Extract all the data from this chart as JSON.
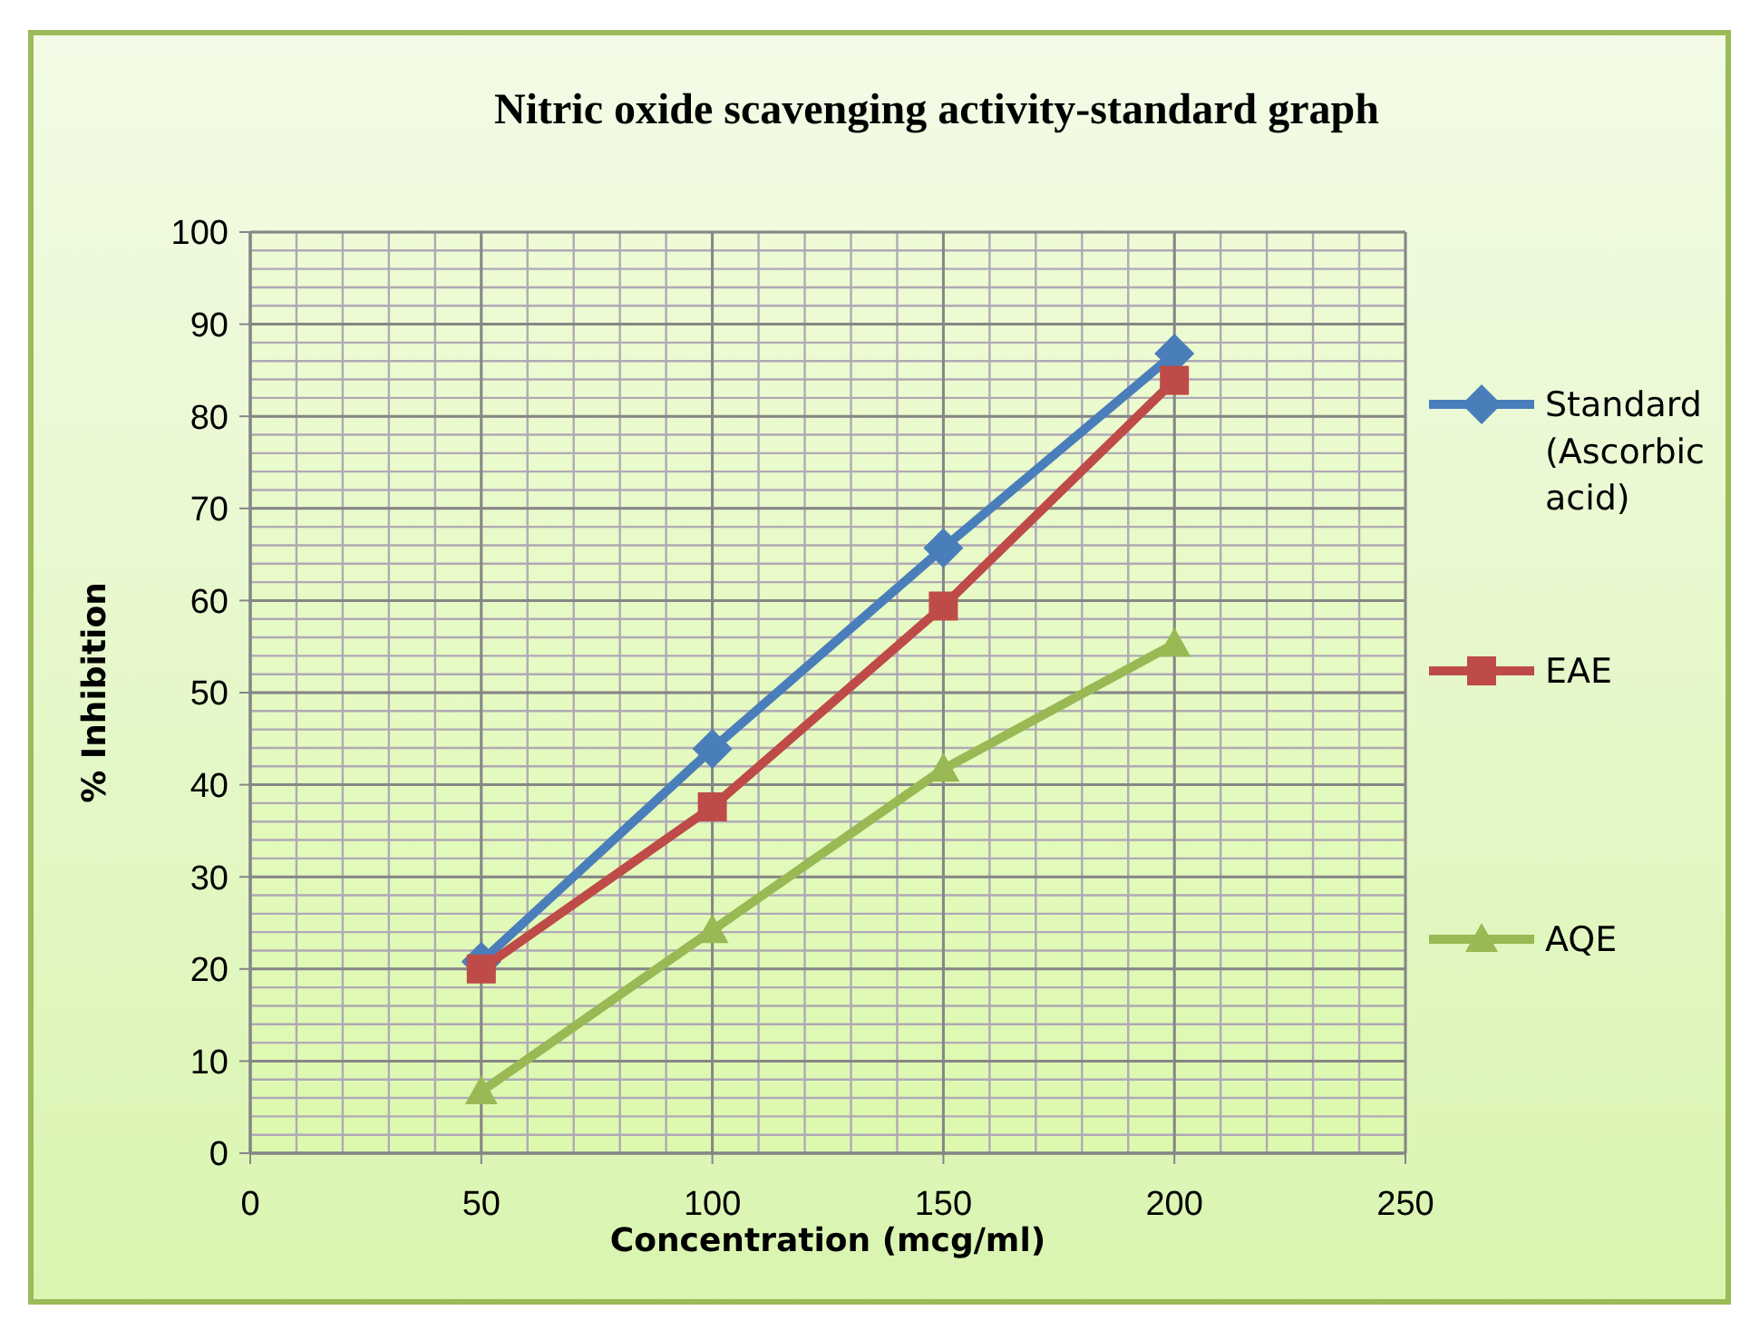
{
  "chart_data": {
    "type": "line",
    "title": "Nitric oxide scavenging activity-standard graph",
    "xlabel": "Concentration (mcg/ml)",
    "ylabel": "% Inhibition",
    "x": [
      50,
      100,
      150,
      200
    ],
    "series": [
      {
        "name": "Standard (Ascorbic acid)",
        "color": "#4a7ebb",
        "marker": "diamond",
        "values": [
          20.8,
          43.9,
          65.7,
          86.8
        ]
      },
      {
        "name": "EAE",
        "color": "#be4b48",
        "marker": "square",
        "values": [
          20,
          37.6,
          59.4,
          83.9
        ]
      },
      {
        "name": "AQE",
        "color": "#98b954",
        "marker": "triangle",
        "values": [
          6.7,
          24.2,
          41.7,
          55.3
        ]
      }
    ],
    "xlim": [
      0,
      250
    ],
    "xticks": [
      0,
      50,
      100,
      150,
      200,
      250
    ],
    "ylim": [
      0,
      100
    ],
    "yticks": [
      0,
      10,
      20,
      30,
      40,
      50,
      60,
      70,
      80,
      90,
      100
    ],
    "grid": true,
    "legend": "right",
    "line_style": "solid"
  }
}
